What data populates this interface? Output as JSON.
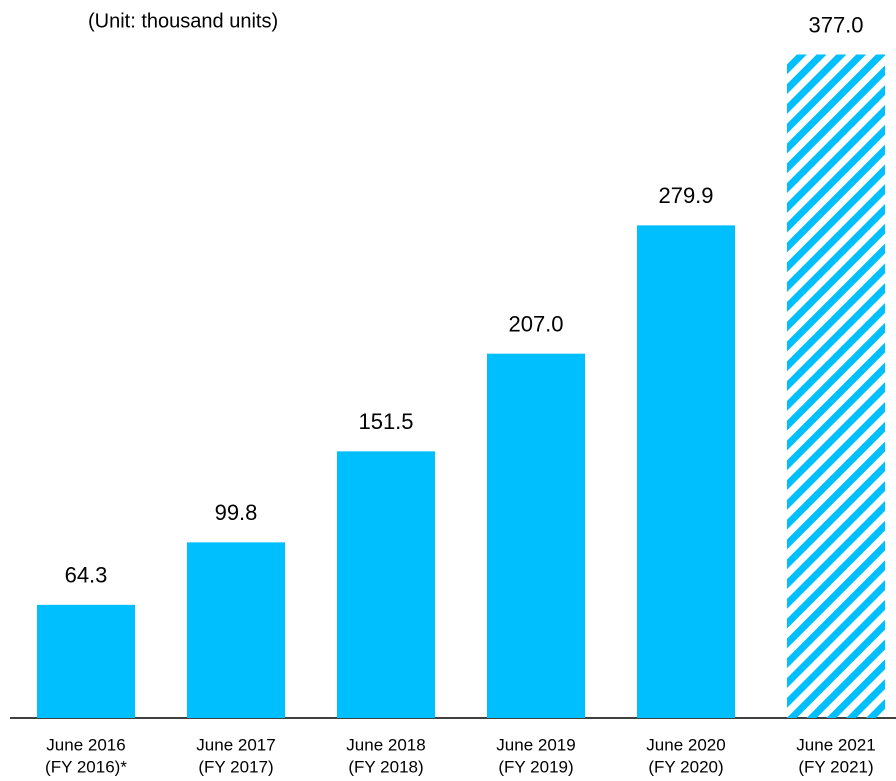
{
  "chart_data": {
    "type": "bar",
    "subtitle": "(Unit: thousand units)",
    "categories": [
      [
        "June 2016",
        "(FY 2016)*"
      ],
      [
        "June 2017",
        "(FY 2017)"
      ],
      [
        "June 2018",
        "(FY 2018)"
      ],
      [
        "June 2019",
        "(FY 2019)"
      ],
      [
        "June 2020",
        "(FY 2020)"
      ],
      [
        "June 2021",
        "(FY 2021)"
      ]
    ],
    "values": [
      64.3,
      99.8,
      151.5,
      207.0,
      279.9,
      377.0
    ],
    "value_labels": [
      "64.3",
      "99.8",
      "151.5",
      "207.0",
      "279.9",
      "377.0"
    ],
    "hatched": [
      false,
      false,
      false,
      false,
      false,
      true
    ],
    "color": "#00bfff",
    "ylim": [
      0,
      400
    ]
  }
}
